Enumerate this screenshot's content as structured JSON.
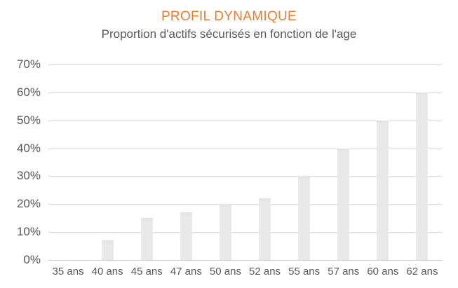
{
  "chart_data": {
    "type": "bar",
    "title": "PROFIL DYNAMIQUE",
    "subtitle": "Proportion d'actifs sécurisés en fonction de l'age",
    "categories": [
      "35 ans",
      "40 ans",
      "45 ans",
      "47 ans",
      "50 ans",
      "52 ans",
      "55 ans",
      "57 ans",
      "60 ans",
      "62 ans"
    ],
    "values": [
      0,
      7,
      15,
      17,
      20,
      22,
      30,
      40,
      50,
      60
    ],
    "unit": "%",
    "xlabel": "",
    "ylabel": "",
    "ylim": [
      0,
      70
    ],
    "ytick_step": 10,
    "ytick_labels": [
      "0%",
      "10%",
      "20%",
      "30%",
      "40%",
      "50%",
      "60%",
      "70%"
    ],
    "grid": true,
    "legend": false,
    "colors": {
      "title": "#ED7D31",
      "text": "#595959",
      "gridline": "#D9D9D9",
      "bar_fill": "#E9E9E9",
      "background": "#FFFFFF"
    }
  }
}
